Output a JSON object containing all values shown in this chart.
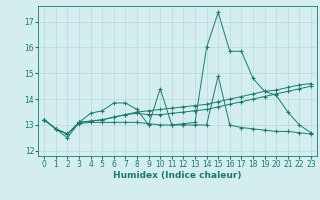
{
  "xlabel": "Humidex (Indice chaleur)",
  "bg_color": "#d4eef0",
  "line_color": "#1a7a6e",
  "grid_color": "#b8d8da",
  "xlim": [
    -0.5,
    23.5
  ],
  "ylim": [
    11.8,
    17.6
  ],
  "yticks": [
    12,
    13,
    14,
    15,
    16,
    17
  ],
  "xticks": [
    0,
    1,
    2,
    3,
    4,
    5,
    6,
    7,
    8,
    9,
    10,
    11,
    12,
    13,
    14,
    15,
    16,
    17,
    18,
    19,
    20,
    21,
    22,
    23
  ],
  "series": [
    [
      13.2,
      12.85,
      12.5,
      13.1,
      13.45,
      13.55,
      13.85,
      13.85,
      13.6,
      13.0,
      14.4,
      13.0,
      13.05,
      13.1,
      16.0,
      17.35,
      15.85,
      15.85,
      14.8,
      14.3,
      14.15,
      13.5,
      13.0,
      12.7
    ],
    [
      13.2,
      12.85,
      12.65,
      13.05,
      13.1,
      13.1,
      13.1,
      13.1,
      13.1,
      13.05,
      13.0,
      13.0,
      13.0,
      13.0,
      13.0,
      14.9,
      13.0,
      12.9,
      12.85,
      12.8,
      12.75,
      12.75,
      12.7,
      12.65
    ],
    [
      13.2,
      12.85,
      12.65,
      13.1,
      13.15,
      13.2,
      13.3,
      13.4,
      13.45,
      13.4,
      13.4,
      13.45,
      13.5,
      13.55,
      13.6,
      13.7,
      13.8,
      13.9,
      14.0,
      14.1,
      14.2,
      14.3,
      14.4,
      14.5
    ],
    [
      13.2,
      12.85,
      12.65,
      13.1,
      13.15,
      13.2,
      13.3,
      13.4,
      13.5,
      13.55,
      13.6,
      13.65,
      13.7,
      13.75,
      13.8,
      13.9,
      14.0,
      14.1,
      14.2,
      14.3,
      14.35,
      14.45,
      14.55,
      14.6
    ]
  ],
  "tick_fontsize": 5.5,
  "xlabel_fontsize": 6.5
}
